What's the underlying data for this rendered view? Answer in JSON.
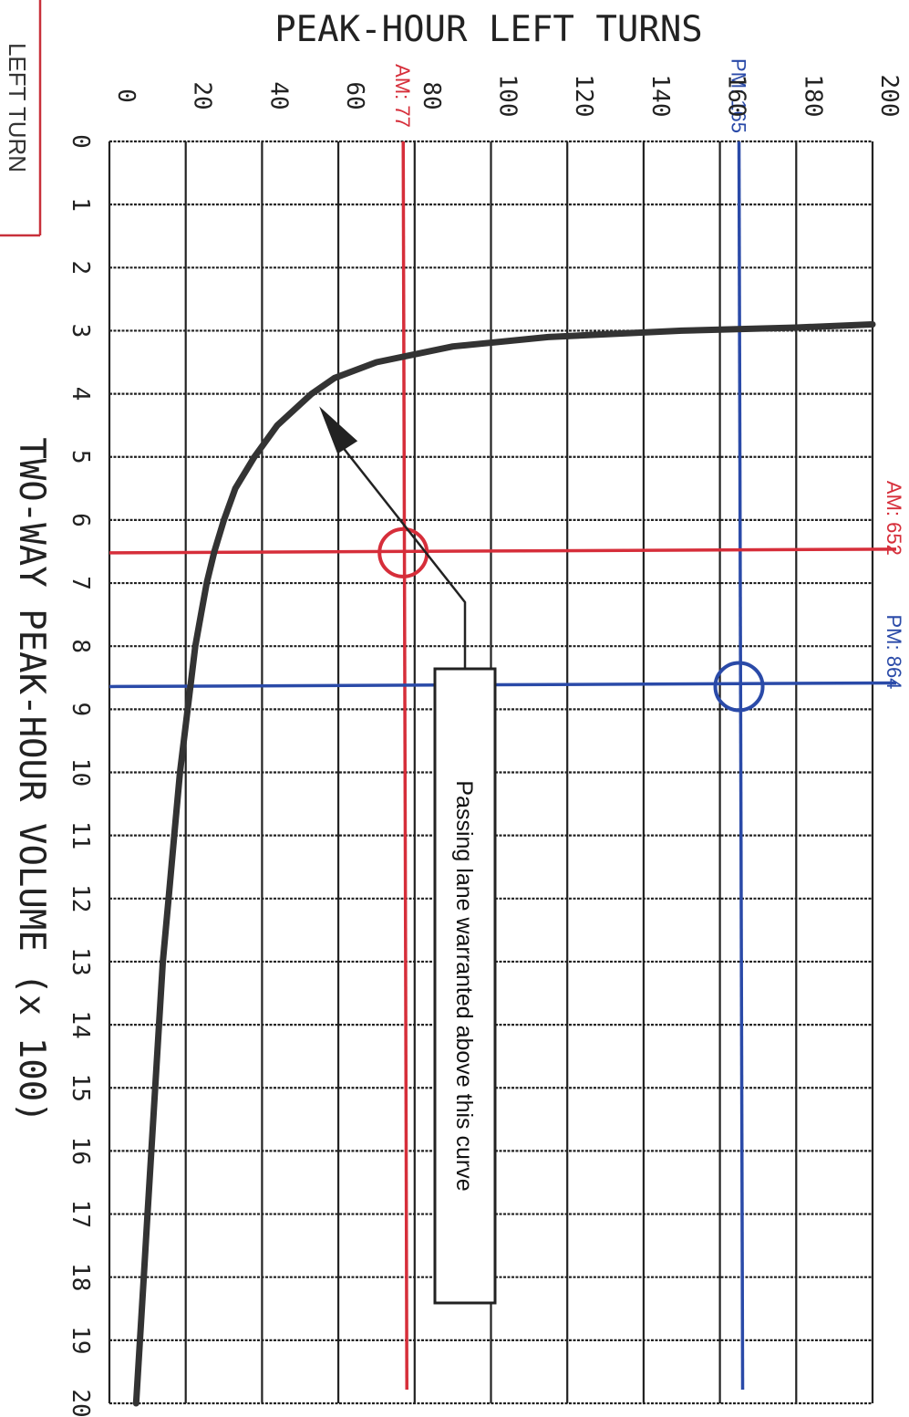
{
  "tab_label": "LEFT TURN",
  "chart_data": {
    "type": "line",
    "title": "PEAK-HOUR LEFT TURNS",
    "xlabel": "TWO-WAY PEAK-HOUR VOLUME (x 100)",
    "ylabel": "",
    "xlim": [
      0,
      20
    ],
    "ylim": [
      0,
      200
    ],
    "x_ticks": [
      "0",
      "1",
      "2",
      "3",
      "4",
      "5",
      "6",
      "7",
      "8",
      "9",
      "10",
      "11",
      "12",
      "13",
      "14",
      "15",
      "16",
      "17",
      "18",
      "19",
      "20"
    ],
    "y_ticks": [
      "0",
      "20",
      "40",
      "60",
      "80",
      "100",
      "120",
      "140",
      "160",
      "180",
      "200"
    ],
    "grid": true,
    "series": [
      {
        "x": [
          20,
          19,
          18,
          17,
          16,
          15,
          14,
          13,
          12,
          11,
          10,
          9,
          8.5,
          8,
          7.5,
          7,
          6.5,
          6,
          5.5,
          5,
          4.5,
          4,
          3.75,
          3.5,
          3.25,
          3.1,
          3.0,
          2.95,
          2.9
        ],
        "y": [
          7,
          8,
          9,
          10,
          11,
          12,
          13,
          14,
          15.5,
          17,
          18.5,
          20.5,
          21.5,
          22.5,
          24,
          25.5,
          27.5,
          30,
          33,
          38,
          44,
          53,
          59,
          70,
          90,
          115,
          150,
          180,
          200
        ],
        "color": "#333333"
      }
    ],
    "reference_lines": [
      {
        "axis": "y",
        "value": 77,
        "label": "AM: 77",
        "color": "#d62e3a"
      },
      {
        "axis": "y",
        "value": 165,
        "label": "PM: 165",
        "color": "#2a4aa8"
      },
      {
        "axis": "x",
        "value": 6.52,
        "label": "AM: 652",
        "color": "#d62e3a"
      },
      {
        "axis": "x",
        "value": 8.64,
        "label": "PM: 864",
        "color": "#2a4aa8"
      }
    ],
    "markers": [
      {
        "x": 6.52,
        "y": 77,
        "color": "#d62e3a"
      },
      {
        "x": 8.64,
        "y": 165,
        "color": "#2a4aa8"
      }
    ],
    "annotations": [
      {
        "text": "Passing lane warranted above this curve",
        "arrow_to": {
          "x": 4.2,
          "y": 55
        }
      }
    ]
  }
}
